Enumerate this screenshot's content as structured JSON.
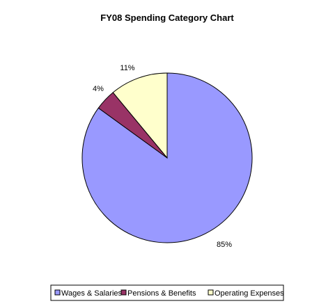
{
  "chart_data": {
    "type": "pie",
    "title": "FY08 Spending Category Chart",
    "start_angle_deg": -90,
    "direction": "clockwise",
    "legend_position": "bottom",
    "slices": [
      {
        "name": "Wages & Salaries",
        "value": 85,
        "label": "85%",
        "color": "#9999FF"
      },
      {
        "name": "Pensions & Benefits",
        "value": 4,
        "label": "4%",
        "color": "#993366"
      },
      {
        "name": "Operating Expenses",
        "value": 11,
        "label": "11%",
        "color": "#FFFFCC"
      }
    ]
  }
}
